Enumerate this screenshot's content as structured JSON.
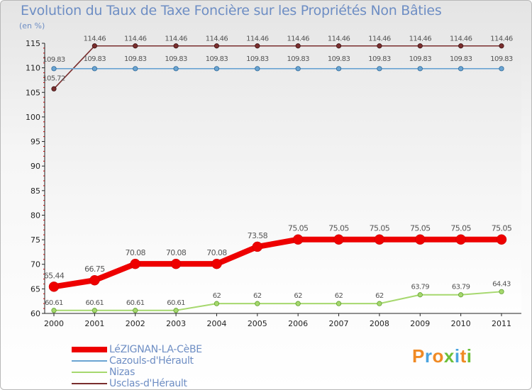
{
  "title": "Evolution du Taux de Taxe Foncière sur les Propriétés Non Bâties",
  "unit": "(en %)",
  "logo": {
    "text": "Proxiti",
    "colors": [
      "#f08a24",
      "#4aa3df",
      "#f08a24",
      "#6cbf3a",
      "#4aa3df",
      "#f08a24",
      "#6cbf3a"
    ]
  },
  "chart_data": {
    "type": "line",
    "title": "Evolution du Taux de Taxe Foncière sur les Propriétés Non Bâties",
    "ylabel": "(en %)",
    "xlabel": "",
    "ylim": [
      60,
      115
    ],
    "yticks": [
      "60",
      "65",
      "70",
      "75",
      "80",
      "85",
      "90",
      "95",
      "100",
      "105",
      "110",
      "115"
    ],
    "grid": false,
    "categories": [
      "2000",
      "2001",
      "2002",
      "2003",
      "2004",
      "2005",
      "2006",
      "2007",
      "2008",
      "2009",
      "2010",
      "2011"
    ],
    "series": [
      {
        "name": "Usclas-d'Hérault",
        "color": "#7a2e2e",
        "values": [
          105.72,
          114.46,
          114.46,
          114.46,
          114.46,
          114.46,
          114.46,
          114.46,
          114.46,
          114.46,
          114.46,
          114.46
        ],
        "labels": [
          "105.72",
          "114.46",
          "114.46",
          "114.46",
          "114.46",
          "114.46",
          "114.46",
          "114.46",
          "114.46",
          "114.46",
          "114.46",
          "114.46"
        ]
      },
      {
        "name": "Cazouls-d'Hérault",
        "color": "#6aa4d2",
        "values": [
          109.83,
          109.83,
          109.83,
          109.83,
          109.83,
          109.83,
          109.83,
          109.83,
          109.83,
          109.83,
          109.83,
          109.83
        ],
        "labels": [
          "109.83",
          "109.83",
          "109.83",
          "109.83",
          "109.83",
          "109.83",
          "109.83",
          "109.83",
          "109.83",
          "109.83",
          "109.83",
          "109.83"
        ]
      },
      {
        "name": "LéZIGNAN-LA-CèBE",
        "color": "#ee0000",
        "values": [
          65.44,
          66.75,
          70.08,
          70.08,
          70.08,
          73.58,
          75.05,
          75.05,
          75.05,
          75.05,
          75.05,
          75.05
        ],
        "labels": [
          "65.44",
          "66.75",
          "70.08",
          "70.08",
          "70.08",
          "73.58",
          "75.05",
          "75.05",
          "75.05",
          "75.05",
          "75.05",
          "75.05"
        ]
      },
      {
        "name": "Nizas",
        "color": "#a6d86e",
        "values": [
          60.61,
          60.61,
          60.61,
          60.61,
          62,
          62,
          62,
          62,
          62,
          63.79,
          63.79,
          64.43
        ],
        "labels": [
          "60.61",
          "60.61",
          "60.61",
          "60.61",
          "62",
          "62",
          "62",
          "62",
          "62",
          "63.79",
          "63.79",
          "64.43"
        ]
      }
    ],
    "legend": {
      "position": "bottom-left",
      "entries": [
        "LéZIGNAN-LA-CèBE",
        "Cazouls-d'Hérault",
        "Nizas",
        "Usclas-d'Hérault"
      ]
    }
  }
}
